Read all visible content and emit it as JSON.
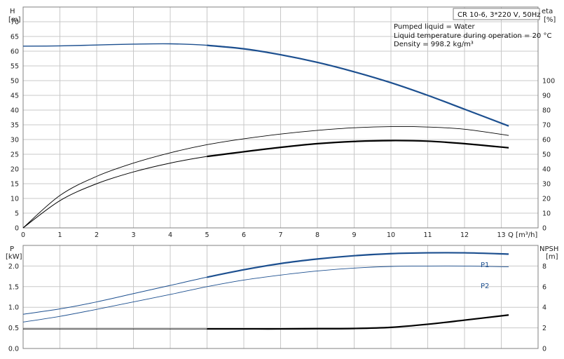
{
  "chart_data": [
    {
      "type": "line",
      "title": "CR 10-6, 3*220 V, 50Hz",
      "annotations": [
        "Pumped liquid = Water",
        "Liquid temperature during operation = 20 °C",
        "Density = 998.2 kg/m³"
      ],
      "xlabel": "Q [m³/h]",
      "xlim": [
        0,
        14
      ],
      "xticks": [
        0,
        1,
        2,
        3,
        4,
        5,
        6,
        7,
        8,
        9,
        10,
        11,
        12,
        13
      ],
      "y_left": {
        "label_top": "H",
        "label_unit": "[m]",
        "lim": [
          0,
          75
        ],
        "ticks": [
          0,
          5,
          10,
          15,
          20,
          25,
          30,
          35,
          40,
          45,
          50,
          55,
          60,
          65,
          70
        ]
      },
      "y_right": {
        "label_top": "eta",
        "label_unit": "[%]",
        "lim": [
          0,
          150
        ],
        "ticks": [
          0,
          10,
          20,
          30,
          40,
          50,
          60,
          70,
          80,
          90,
          100
        ]
      },
      "grid": true,
      "series": [
        {
          "axis": "left",
          "color": "#1c4f8f",
          "width": 1.4,
          "bold_from": 5.0,
          "x": [
            0,
            1,
            2,
            3,
            4,
            5,
            6,
            7,
            8,
            9,
            10,
            11,
            12,
            13.2
          ],
          "y": [
            61.7,
            61.8,
            62.1,
            62.4,
            62.5,
            62.0,
            60.8,
            58.8,
            56.2,
            53.0,
            49.3,
            45.0,
            40.3,
            34.6
          ]
        },
        {
          "axis": "right",
          "color": "#000000",
          "width": 0.9,
          "bold_from": null,
          "x": [
            0,
            1,
            2,
            3,
            4,
            5,
            6,
            7,
            8,
            9,
            10,
            11,
            12,
            13.2
          ],
          "y": [
            0,
            22,
            35,
            44,
            51,
            56.5,
            60.5,
            63.7,
            66.2,
            68.0,
            68.8,
            68.5,
            67.0,
            62.8
          ]
        },
        {
          "axis": "right",
          "color": "#000000",
          "width": 1.0,
          "bold_from": 5.0,
          "x": [
            0,
            1,
            2,
            3,
            4,
            5,
            6,
            7,
            8,
            9,
            10,
            11,
            12,
            13.2
          ],
          "y": [
            0,
            18.5,
            30,
            38,
            44,
            48.5,
            51.7,
            54.7,
            57.2,
            58.7,
            59.3,
            58.9,
            57.2,
            54.4
          ]
        }
      ]
    },
    {
      "type": "line",
      "xlim": [
        0,
        14
      ],
      "y_left": {
        "label_top": "P",
        "label_unit": "[kW]",
        "lim": [
          0,
          2.5
        ],
        "ticks": [
          0.0,
          0.5,
          1.0,
          1.5,
          2.0
        ]
      },
      "y_right": {
        "label_top": "NPSH",
        "label_unit": "[m]",
        "lim": [
          0,
          10
        ],
        "ticks": [
          0,
          2,
          4,
          6,
          8
        ]
      },
      "grid": true,
      "series": [
        {
          "name": "P1",
          "axis": "left",
          "color": "#1c4f8f",
          "width": 1.0,
          "bold_from": 5.0,
          "x": [
            0,
            1,
            2,
            3,
            4,
            5,
            6,
            7,
            8,
            9,
            10,
            11,
            12,
            13.2
          ],
          "y": [
            0.83,
            0.96,
            1.13,
            1.33,
            1.53,
            1.73,
            1.91,
            2.06,
            2.17,
            2.25,
            2.3,
            2.32,
            2.32,
            2.29
          ]
        },
        {
          "name": "P2",
          "axis": "left",
          "color": "#1c4f8f",
          "width": 0.9,
          "bold_from": null,
          "x": [
            0,
            1,
            2,
            3,
            4,
            5,
            6,
            7,
            8,
            9,
            10,
            11,
            12,
            13.2
          ],
          "y": [
            0.64,
            0.78,
            0.95,
            1.13,
            1.31,
            1.5,
            1.66,
            1.78,
            1.88,
            1.95,
            1.99,
            2.0,
            2.0,
            1.98
          ]
        },
        {
          "axis": "right",
          "color": "#000000",
          "width": 1.0,
          "bold_from": 5.0,
          "x": [
            0,
            1,
            2,
            3,
            4,
            5,
            6,
            7,
            8,
            9,
            10,
            11,
            12,
            13.2
          ],
          "y": [
            1.9,
            1.9,
            1.9,
            1.9,
            1.9,
            1.9,
            1.9,
            1.9,
            1.92,
            1.94,
            2.05,
            2.35,
            2.75,
            3.25
          ]
        }
      ]
    }
  ]
}
